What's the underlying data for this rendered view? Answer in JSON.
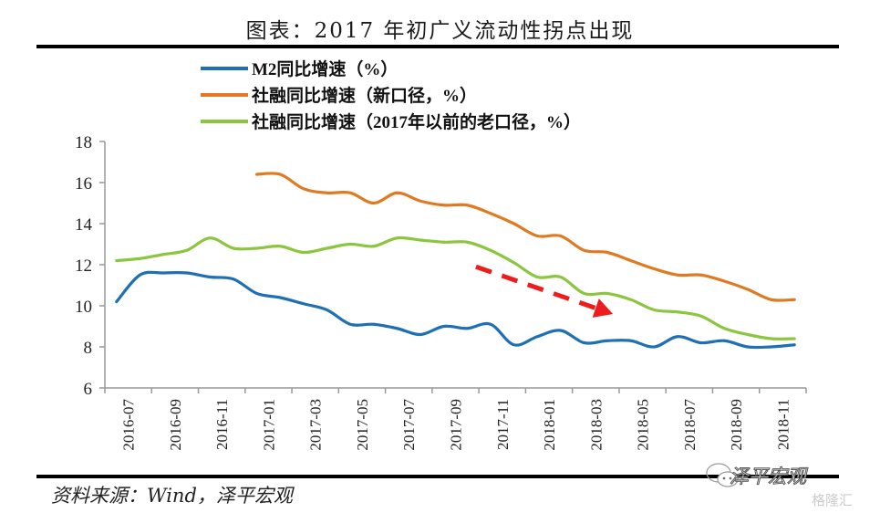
{
  "header": {
    "title": "图表：2017 年初广义流动性拐点出现"
  },
  "footer": {
    "source": "资料来源：Wind，泽平宏观",
    "watermark_brand": "泽平宏观",
    "watermark_site": "格隆汇"
  },
  "chart_data": {
    "type": "line",
    "title": "图表：2017 年初广义流动性拐点出现",
    "xlabel": "",
    "ylabel": "",
    "ylim": [
      6,
      18
    ],
    "yticks": [
      6,
      8,
      10,
      12,
      14,
      16,
      18
    ],
    "grid": false,
    "legend_position": "top-left",
    "x": [
      "2016-07",
      "2016-08",
      "2016-09",
      "2016-10",
      "2016-11",
      "2016-12",
      "2017-01",
      "2017-02",
      "2017-03",
      "2017-04",
      "2017-05",
      "2017-06",
      "2017-07",
      "2017-08",
      "2017-09",
      "2017-10",
      "2017-11",
      "2017-12",
      "2018-01",
      "2018-02",
      "2018-03",
      "2018-04",
      "2018-05",
      "2018-06",
      "2018-07",
      "2018-08",
      "2018-09",
      "2018-10",
      "2018-11",
      "2018-12"
    ],
    "xtick_labels": [
      "2016-07",
      "2016-09",
      "2016-11",
      "2017-01",
      "2017-03",
      "2017-05",
      "2017-07",
      "2017-09",
      "2017-11",
      "2018-01",
      "2018-03",
      "2018-05",
      "2018-07",
      "2018-09",
      "2018-11"
    ],
    "series": [
      {
        "name": "M2同比增速（%）",
        "color": "#1f6fb4",
        "values": [
          10.2,
          11.5,
          11.6,
          11.6,
          11.4,
          11.3,
          10.6,
          10.4,
          10.1,
          9.8,
          9.1,
          9.1,
          8.9,
          8.6,
          9.0,
          8.9,
          9.1,
          8.1,
          8.5,
          8.8,
          8.2,
          8.3,
          8.3,
          8.0,
          8.5,
          8.2,
          8.3,
          8.0,
          8.0,
          8.1
        ]
      },
      {
        "name": "社融同比增速（新口径，%）",
        "color": "#e07a22",
        "values": [
          null,
          null,
          null,
          null,
          null,
          null,
          16.4,
          16.4,
          15.7,
          15.5,
          15.5,
          15.0,
          15.5,
          15.1,
          14.9,
          14.9,
          14.5,
          14.0,
          13.4,
          13.4,
          12.7,
          12.6,
          12.2,
          11.8,
          11.5,
          11.5,
          11.2,
          10.8,
          10.3,
          10.3
        ]
      },
      {
        "name": "社融同比增速（2017年以前的老口径，%）",
        "color": "#8cc63f",
        "values": [
          12.2,
          12.3,
          12.5,
          12.7,
          13.3,
          12.8,
          12.8,
          12.9,
          12.6,
          12.8,
          13.0,
          12.9,
          13.3,
          13.2,
          13.1,
          13.1,
          12.7,
          12.1,
          11.4,
          11.4,
          10.6,
          10.6,
          10.3,
          9.8,
          9.7,
          9.5,
          8.9,
          8.6,
          8.4,
          8.4
        ]
      }
    ],
    "annotations": [
      {
        "type": "dashed-arrow",
        "color": "#ee1c1c",
        "from_x": "2017-11",
        "from_y": 11.9,
        "to_x": "2018-04",
        "to_y": 9.6,
        "meaning": "downward trend"
      }
    ]
  }
}
